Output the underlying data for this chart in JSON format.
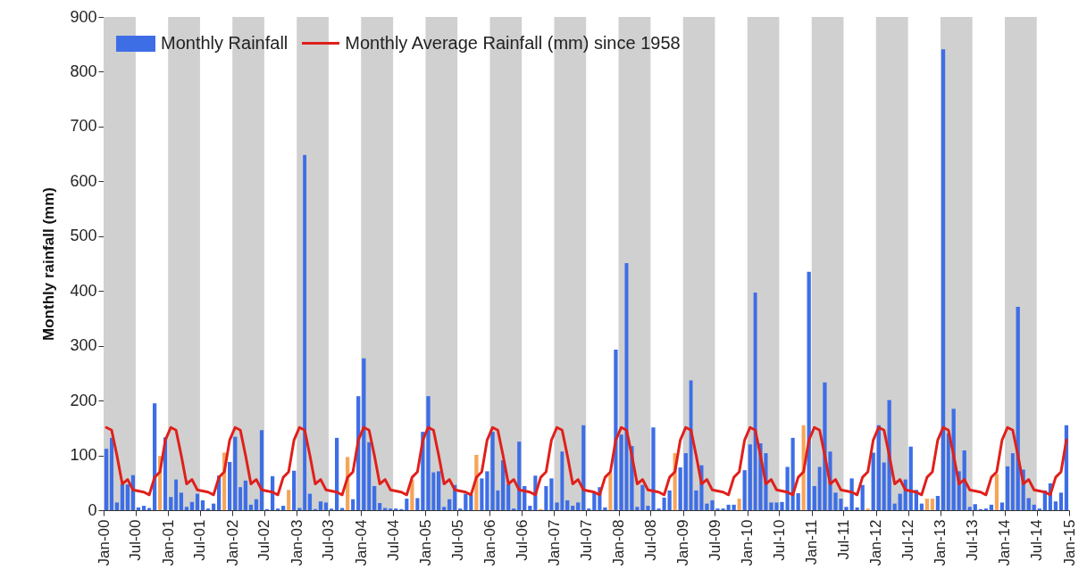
{
  "chart_data": {
    "type": "bar",
    "ylabel": "Monthly rainfall (mm)",
    "x": [
      "2000-01",
      "2000-02",
      "2000-03",
      "2000-04",
      "2000-05",
      "2000-06",
      "2000-07",
      "2000-08",
      "2000-09",
      "2000-10",
      "2000-11",
      "2000-12",
      "2001-01",
      "2001-02",
      "2001-03",
      "2001-04",
      "2001-05",
      "2001-06",
      "2001-07",
      "2001-08",
      "2001-09",
      "2001-10",
      "2001-11",
      "2001-12",
      "2002-01",
      "2002-02",
      "2002-03",
      "2002-04",
      "2002-05",
      "2002-06",
      "2002-07",
      "2002-08",
      "2002-09",
      "2002-10",
      "2002-11",
      "2002-12",
      "2003-01",
      "2003-02",
      "2003-03",
      "2003-04",
      "2003-05",
      "2003-06",
      "2003-07",
      "2003-08",
      "2003-09",
      "2003-10",
      "2003-11",
      "2003-12",
      "2004-01",
      "2004-02",
      "2004-03",
      "2004-04",
      "2004-05",
      "2004-06",
      "2004-07",
      "2004-08",
      "2004-09",
      "2004-10",
      "2004-11",
      "2004-12",
      "2005-01",
      "2005-02",
      "2005-03",
      "2005-04",
      "2005-05",
      "2005-06",
      "2005-07",
      "2005-08",
      "2005-09",
      "2005-10",
      "2005-11",
      "2005-12",
      "2006-01",
      "2006-02",
      "2006-03",
      "2006-04",
      "2006-05",
      "2006-06",
      "2006-07",
      "2006-08",
      "2006-09",
      "2006-10",
      "2006-11",
      "2006-12",
      "2007-01",
      "2007-02",
      "2007-03",
      "2007-04",
      "2007-05",
      "2007-06",
      "2007-07",
      "2007-08",
      "2007-09",
      "2007-10",
      "2007-11",
      "2007-12",
      "2008-01",
      "2008-02",
      "2008-03",
      "2008-04",
      "2008-05",
      "2008-06",
      "2008-07",
      "2008-08",
      "2008-09",
      "2008-10",
      "2008-11",
      "2008-12",
      "2009-01",
      "2009-02",
      "2009-03",
      "2009-04",
      "2009-05",
      "2009-06",
      "2009-07",
      "2009-08",
      "2009-09",
      "2009-10",
      "2009-11",
      "2009-12",
      "2010-01",
      "2010-02",
      "2010-03",
      "2010-04",
      "2010-05",
      "2010-06",
      "2010-07",
      "2010-08",
      "2010-09",
      "2010-10",
      "2010-11",
      "2010-12",
      "2011-01",
      "2011-02",
      "2011-03",
      "2011-04",
      "2011-05",
      "2011-06",
      "2011-07",
      "2011-08",
      "2011-09",
      "2011-10",
      "2011-11",
      "2011-12",
      "2012-01",
      "2012-02",
      "2012-03",
      "2012-04",
      "2012-05",
      "2012-06",
      "2012-07",
      "2012-08",
      "2012-09",
      "2012-10",
      "2012-11",
      "2012-12",
      "2013-01",
      "2013-02",
      "2013-03",
      "2013-04",
      "2013-05",
      "2013-06",
      "2013-07",
      "2013-08",
      "2013-09",
      "2013-10",
      "2013-11",
      "2013-12",
      "2014-01",
      "2014-02",
      "2014-03",
      "2014-04",
      "2014-05",
      "2014-06",
      "2014-07",
      "2014-08",
      "2014-09",
      "2014-10",
      "2014-11",
      "2014-12"
    ],
    "series": [
      {
        "name": "Monthly Rainfall",
        "color": "#3d6ee6",
        "colors": [
          "#3d6ee6",
          "#3d6ee6",
          "#3d6ee6",
          "#3d6ee6",
          "#3d6ee6",
          "#3d6ee6",
          "#3d6ee6",
          "#3d6ee6",
          "#3d6ee6",
          "#3d6ee6",
          "#f5a55a",
          "#3d6ee6",
          "#3d6ee6",
          "#3d6ee6",
          "#3d6ee6",
          "#3d6ee6",
          "#3d6ee6",
          "#3d6ee6",
          "#3d6ee6",
          "#3d6ee6",
          "#3d6ee6",
          "#3d6ee6",
          "#f5a55a",
          "#3d6ee6",
          "#3d6ee6",
          "#3d6ee6",
          "#3d6ee6",
          "#3d6ee6",
          "#3d6ee6",
          "#3d6ee6",
          "#3d6ee6",
          "#3d6ee6",
          "#3d6ee6",
          "#3d6ee6",
          "#f5a55a",
          "#3d6ee6",
          "#3d6ee6",
          "#3d6ee6",
          "#3d6ee6",
          "#3d6ee6",
          "#3d6ee6",
          "#3d6ee6",
          "#3d6ee6",
          "#3d6ee6",
          "#3d6ee6",
          "#f5a55a",
          "#3d6ee6",
          "#3d6ee6",
          "#3d6ee6",
          "#3d6ee6",
          "#3d6ee6",
          "#3d6ee6",
          "#3d6ee6",
          "#3d6ee6",
          "#3d6ee6",
          "#3d6ee6",
          "#3d6ee6",
          "#f5a55a",
          "#3d6ee6",
          "#3d6ee6",
          "#3d6ee6",
          "#3d6ee6",
          "#3d6ee6",
          "#3d6ee6",
          "#3d6ee6",
          "#3d6ee6",
          "#3d6ee6",
          "#3d6ee6",
          "#3d6ee6",
          "#f5a55a",
          "#3d6ee6",
          "#3d6ee6",
          "#3d6ee6",
          "#3d6ee6",
          "#3d6ee6",
          "#3d6ee6",
          "#3d6ee6",
          "#3d6ee6",
          "#3d6ee6",
          "#3d6ee6",
          "#3d6ee6",
          "#f5a55a",
          "#3d6ee6",
          "#3d6ee6",
          "#3d6ee6",
          "#3d6ee6",
          "#3d6ee6",
          "#3d6ee6",
          "#3d6ee6",
          "#3d6ee6",
          "#3d6ee6",
          "#3d6ee6",
          "#3d6ee6",
          "#3d6ee6",
          "#f5a55a",
          "#3d6ee6",
          "#3d6ee6",
          "#3d6ee6",
          "#3d6ee6",
          "#3d6ee6",
          "#3d6ee6",
          "#3d6ee6",
          "#3d6ee6",
          "#3d6ee6",
          "#3d6ee6",
          "#3d6ee6",
          "#f5a55a",
          "#3d6ee6",
          "#3d6ee6",
          "#3d6ee6",
          "#3d6ee6",
          "#3d6ee6",
          "#3d6ee6",
          "#3d6ee6",
          "#3d6ee6",
          "#3d6ee6",
          "#3d6ee6",
          "#3d6ee6",
          "#f5a55a",
          "#3d6ee6",
          "#3d6ee6",
          "#3d6ee6",
          "#3d6ee6",
          "#3d6ee6",
          "#3d6ee6",
          "#3d6ee6",
          "#3d6ee6",
          "#3d6ee6",
          "#3d6ee6",
          "#3d6ee6",
          "#f5a55a",
          "#3d6ee6",
          "#3d6ee6",
          "#3d6ee6",
          "#3d6ee6",
          "#3d6ee6",
          "#3d6ee6",
          "#3d6ee6",
          "#3d6ee6",
          "#3d6ee6",
          "#3d6ee6",
          "#3d6ee6",
          "#f5a55a",
          "#3d6ee6",
          "#3d6ee6",
          "#3d6ee6",
          "#3d6ee6",
          "#3d6ee6",
          "#3d6ee6",
          "#3d6ee6",
          "#3d6ee6",
          "#3d6ee6",
          "#3d6ee6",
          "#f5a55a",
          "#f5a55a",
          "#3d6ee6",
          "#3d6ee6",
          "#3d6ee6",
          "#3d6ee6",
          "#3d6ee6",
          "#3d6ee6",
          "#3d6ee6",
          "#3d6ee6",
          "#3d6ee6",
          "#3d6ee6",
          "#3d6ee6",
          "#f5a55a",
          "#3d6ee6",
          "#3d6ee6",
          "#3d6ee6",
          "#3d6ee6",
          "#3d6ee6",
          "#3d6ee6",
          "#3d6ee6",
          "#3d6ee6",
          "#3d6ee6",
          "#3d6ee6",
          "#3d6ee6",
          "#3d6ee6",
          "#3d6ee6"
        ],
        "values": [
          112,
          132,
          14,
          47,
          47,
          64,
          5,
          8,
          4,
          195,
          99,
          133,
          24,
          56,
          32,
          6,
          15,
          30,
          18,
          3,
          12,
          63,
          105,
          88,
          134,
          42,
          54,
          10,
          20,
          146,
          2,
          62,
          3,
          8,
          37,
          72,
          4,
          648,
          30,
          2,
          16,
          14,
          3,
          132,
          4,
          97,
          20,
          208,
          277,
          124,
          44,
          13,
          4,
          3,
          3,
          2,
          21,
          56,
          22,
          143,
          208,
          69,
          71,
          6,
          20,
          46,
          3,
          30,
          28,
          101,
          58,
          71,
          143,
          36,
          91,
          47,
          3,
          125,
          44,
          8,
          63,
          2,
          44,
          58,
          14,
          107,
          18,
          8,
          14,
          155,
          3,
          33,
          42,
          5,
          68,
          293,
          138,
          451,
          117,
          6,
          46,
          8,
          151,
          3,
          23,
          36,
          104,
          78,
          104,
          237,
          36,
          82,
          12,
          18,
          3,
          3,
          10,
          10,
          21,
          73,
          120,
          397,
          122,
          104,
          14,
          14,
          15,
          79,
          132,
          31,
          155,
          435,
          44,
          79,
          233,
          107,
          32,
          21,
          6,
          58,
          5,
          46,
          3,
          105,
          155,
          87,
          201,
          12,
          30,
          56,
          116,
          37,
          12,
          21,
          21,
          26,
          841,
          140,
          185,
          71,
          109,
          6,
          11,
          2,
          3,
          10,
          66,
          14,
          80,
          104,
          371,
          74,
          22,
          10,
          3,
          36,
          49,
          16,
          32,
          155
        ]
      },
      {
        "name": "Monthly Average Rainfall (mm) since 1958",
        "type": "line",
        "color": "#e0201b",
        "values": [
          151,
          146,
          100,
          48,
          56,
          37,
          35,
          33,
          28,
          60,
          70,
          128,
          151,
          146,
          100,
          48,
          56,
          37,
          35,
          33,
          28,
          60,
          70,
          128,
          151,
          146,
          100,
          48,
          56,
          37,
          35,
          33,
          28,
          60,
          70,
          128,
          151,
          146,
          100,
          48,
          56,
          37,
          35,
          33,
          28,
          60,
          70,
          128,
          151,
          146,
          100,
          48,
          56,
          37,
          35,
          33,
          28,
          60,
          70,
          128,
          151,
          146,
          100,
          48,
          56,
          37,
          35,
          33,
          28,
          60,
          70,
          128,
          151,
          146,
          100,
          48,
          56,
          37,
          35,
          33,
          28,
          60,
          70,
          128,
          151,
          146,
          100,
          48,
          56,
          37,
          35,
          33,
          28,
          60,
          70,
          128,
          151,
          146,
          100,
          48,
          56,
          37,
          35,
          33,
          28,
          60,
          70,
          128,
          151,
          146,
          100,
          48,
          56,
          37,
          35,
          33,
          28,
          60,
          70,
          128,
          151,
          146,
          100,
          48,
          56,
          37,
          35,
          33,
          28,
          60,
          70,
          128,
          151,
          146,
          100,
          48,
          56,
          37,
          35,
          33,
          28,
          60,
          70,
          128,
          151,
          146,
          100,
          48,
          56,
          37,
          35,
          33,
          28,
          60,
          70,
          128,
          151,
          146,
          100,
          48,
          56,
          37,
          35,
          33,
          28,
          60,
          70,
          128,
          151,
          146,
          100,
          48,
          56,
          37,
          35,
          33,
          28,
          60,
          70,
          128
        ]
      }
    ],
    "xlim": [
      "2000-01",
      "2015-01"
    ],
    "xticks": [
      {
        "value": "2000-01",
        "label": "Jan-00"
      },
      {
        "value": "2000-07",
        "label": "Jul-00"
      },
      {
        "value": "2001-01",
        "label": "Jan-01"
      },
      {
        "value": "2001-07",
        "label": "Jul-01"
      },
      {
        "value": "2002-01",
        "label": "Jan-02"
      },
      {
        "value": "2002-07",
        "label": "Jul-02"
      },
      {
        "value": "2003-01",
        "label": "Jan-03"
      },
      {
        "value": "2003-07",
        "label": "Jul-03"
      },
      {
        "value": "2004-01",
        "label": "Jan-04"
      },
      {
        "value": "2004-07",
        "label": "Jul-04"
      },
      {
        "value": "2005-01",
        "label": "Jan-05"
      },
      {
        "value": "2005-07",
        "label": "Jul-05"
      },
      {
        "value": "2006-01",
        "label": "Jan-06"
      },
      {
        "value": "2006-07",
        "label": "Jul-06"
      },
      {
        "value": "2007-01",
        "label": "Jan-07"
      },
      {
        "value": "2007-07",
        "label": "Jul-07"
      },
      {
        "value": "2008-01",
        "label": "Jan-08"
      },
      {
        "value": "2008-07",
        "label": "Jul-08"
      },
      {
        "value": "2009-01",
        "label": "Jan-09"
      },
      {
        "value": "2009-07",
        "label": "Jul-09"
      },
      {
        "value": "2010-01",
        "label": "Jan-10"
      },
      {
        "value": "2010-07",
        "label": "Jul-10"
      },
      {
        "value": "2011-01",
        "label": "Jan-11"
      },
      {
        "value": "2011-07",
        "label": "Jul-11"
      },
      {
        "value": "2012-01",
        "label": "Jan-12"
      },
      {
        "value": "2012-07",
        "label": "Jul-12"
      },
      {
        "value": "2013-01",
        "label": "Jan-13"
      },
      {
        "value": "2013-07",
        "label": "Jul-13"
      },
      {
        "value": "2014-01",
        "label": "Jan-14"
      },
      {
        "value": "2014-07",
        "label": "Jul-14"
      },
      {
        "value": "2015-01",
        "label": "Jan-15"
      }
    ],
    "ylim": [
      0,
      900
    ],
    "yticks": [
      0,
      100,
      200,
      300,
      400,
      500,
      600,
      700,
      800,
      900
    ],
    "bands": [
      {
        "axis": "x",
        "from": "2000-01",
        "to": "2000-07",
        "color": "#d0d0d0"
      },
      {
        "axis": "x",
        "from": "2001-01",
        "to": "2001-07",
        "color": "#d0d0d0"
      },
      {
        "axis": "x",
        "from": "2002-01",
        "to": "2002-07",
        "color": "#d0d0d0"
      },
      {
        "axis": "x",
        "from": "2003-01",
        "to": "2003-07",
        "color": "#d0d0d0"
      },
      {
        "axis": "x",
        "from": "2004-01",
        "to": "2004-07",
        "color": "#d0d0d0"
      },
      {
        "axis": "x",
        "from": "2005-01",
        "to": "2005-07",
        "color": "#d0d0d0"
      },
      {
        "axis": "x",
        "from": "2006-01",
        "to": "2006-07",
        "color": "#d0d0d0"
      },
      {
        "axis": "x",
        "from": "2007-01",
        "to": "2007-07",
        "color": "#d0d0d0"
      },
      {
        "axis": "x",
        "from": "2008-01",
        "to": "2008-07",
        "color": "#d0d0d0"
      },
      {
        "axis": "x",
        "from": "2009-01",
        "to": "2009-07",
        "color": "#d0d0d0"
      },
      {
        "axis": "x",
        "from": "2010-01",
        "to": "2010-07",
        "color": "#d0d0d0"
      },
      {
        "axis": "x",
        "from": "2011-01",
        "to": "2011-07",
        "color": "#d0d0d0"
      },
      {
        "axis": "x",
        "from": "2012-01",
        "to": "2012-07",
        "color": "#d0d0d0"
      },
      {
        "axis": "x",
        "from": "2013-01",
        "to": "2013-07",
        "color": "#d0d0d0"
      },
      {
        "axis": "x",
        "from": "2014-01",
        "to": "2014-07",
        "color": "#d0d0d0"
      }
    ],
    "legend": "top left"
  }
}
